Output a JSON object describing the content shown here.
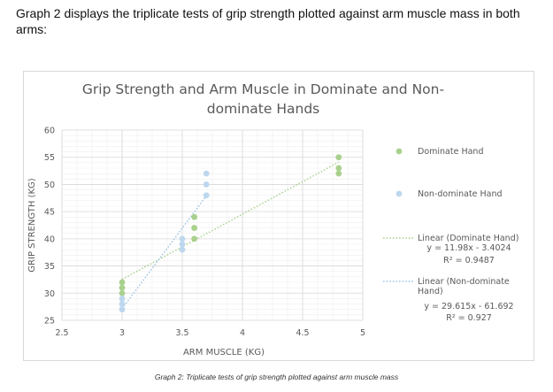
{
  "intro_text": "Graph 2 displays the triplicate tests of grip strength plotted against arm muscle mass in both arms:",
  "caption": "Graph 2: Triplicate tests of grip strength plotted against arm muscle mass",
  "chart_data": {
    "type": "scatter",
    "title": "Grip Strength and Arm Muscle in Dominate and Non-dominate Hands",
    "title_lines": [
      "Grip Strength and Arm Muscle in Dominate and Non-",
      "dominate Hands"
    ],
    "xlabel": "ARM MUSCLE (KG)",
    "ylabel": "GRIP STRENGTH (KG)",
    "xlim": [
      2.5,
      5
    ],
    "ylim": [
      25,
      60
    ],
    "x_ticks": [
      "2.5",
      "3",
      "3.5",
      "4",
      "4.5",
      "5"
    ],
    "x_tick_values": [
      2.5,
      3,
      3.5,
      4,
      4.5,
      5
    ],
    "y_ticks": [
      "25",
      "30",
      "35",
      "40",
      "45",
      "50",
      "55",
      "60"
    ],
    "y_tick_values": [
      25,
      30,
      35,
      40,
      45,
      50,
      55,
      60
    ],
    "grid": true,
    "legend_position": "right",
    "series": [
      {
        "name": "Dominate Hand",
        "color": "#a9d18e",
        "points": [
          {
            "x": 3,
            "y": 32
          },
          {
            "x": 3,
            "y": 31
          },
          {
            "x": 3,
            "y": 30
          },
          {
            "x": 3.6,
            "y": 44
          },
          {
            "x": 3.6,
            "y": 42
          },
          {
            "x": 3.6,
            "y": 40
          },
          {
            "x": 4.8,
            "y": 55
          },
          {
            "x": 4.8,
            "y": 53
          },
          {
            "x": 4.8,
            "y": 52
          }
        ]
      },
      {
        "name": "Non-dominate Hand",
        "color": "#bdd7ee",
        "points": [
          {
            "x": 3,
            "y": 29
          },
          {
            "x": 3,
            "y": 28
          },
          {
            "x": 3,
            "y": 27
          },
          {
            "x": 3.5,
            "y": 40
          },
          {
            "x": 3.5,
            "y": 39
          },
          {
            "x": 3.5,
            "y": 38
          },
          {
            "x": 3.7,
            "y": 52
          },
          {
            "x": 3.7,
            "y": 50
          },
          {
            "x": 3.7,
            "y": 48
          }
        ]
      }
    ],
    "trendlines": [
      {
        "name": "Linear (Dominate Hand)",
        "color": "#a9d18e",
        "slope": 11.98,
        "intercept": -3.4024,
        "x_range": [
          3,
          4.8
        ],
        "equation": "y = 11.98x - 3.4024",
        "r2": "R² = 0.9487"
      },
      {
        "name": "Linear (Non-dominate Hand)",
        "color": "#9dc3e6",
        "slope": 29.615,
        "intercept": -61.692,
        "x_range": [
          3,
          3.7
        ],
        "equation": "y = 29.615x - 61.692",
        "r2": "R² = 0.927"
      }
    ]
  }
}
